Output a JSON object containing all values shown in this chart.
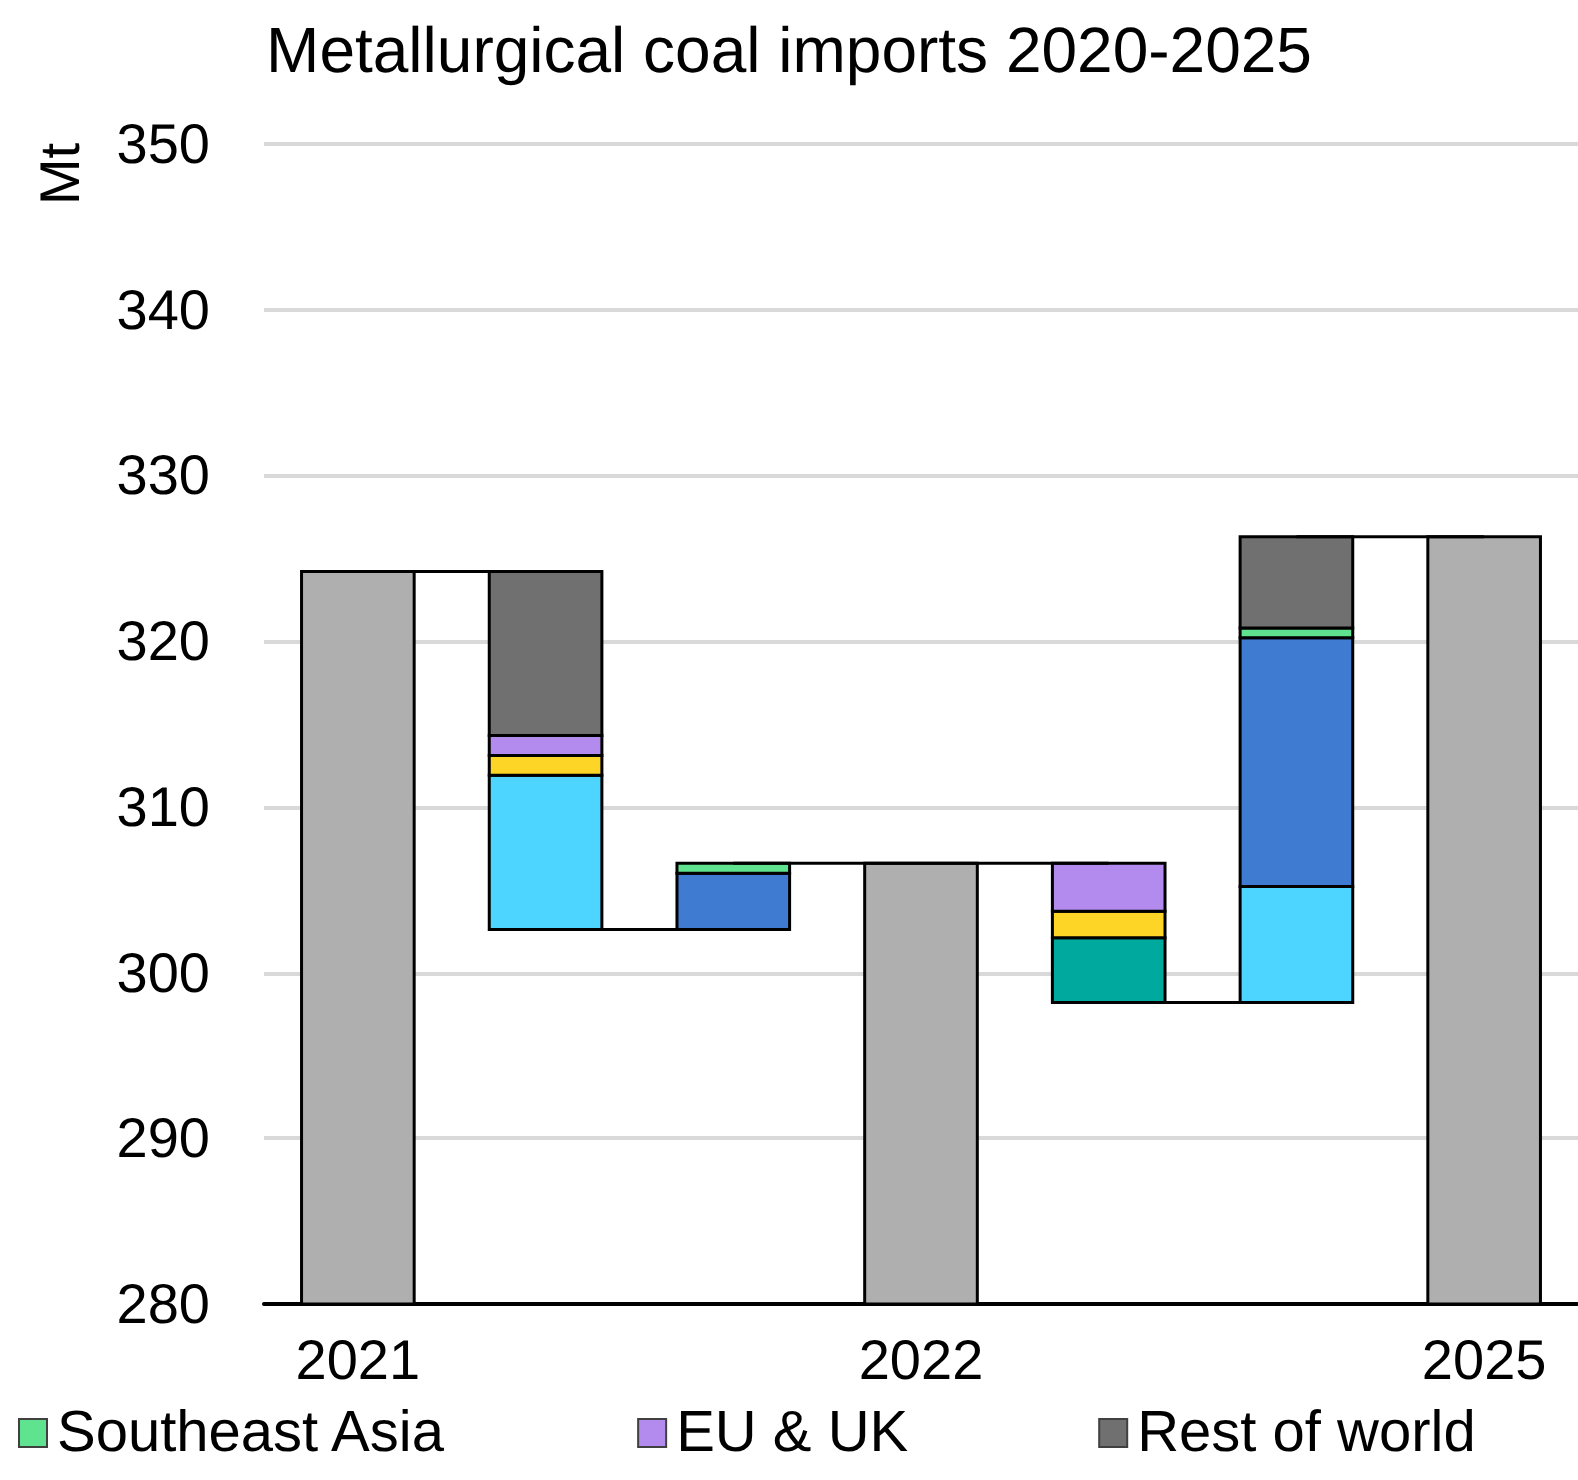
{
  "chart_data": {
    "type": "bar",
    "title": "Metallurgical coal imports 2020-2025",
    "ylabel": "Mt",
    "categories": [
      "2021",
      null,
      null,
      "2022",
      null,
      null,
      "2025"
    ],
    "series": [
      {
        "color": "#afafaf",
        "values": [
          324.2,
          null,
          null,
          306.6,
          null,
          null,
          326.3
        ]
      },
      {
        "color": "#4dd5ff",
        "values": [
          null,
          9.3,
          null,
          null,
          null,
          7.0,
          null
        ],
        "base": [
          null,
          302.6,
          null,
          null,
          null,
          298.2,
          null
        ]
      },
      {
        "color": "#00a99d",
        "values": [
          null,
          null,
          null,
          null,
          3.9,
          null,
          null
        ],
        "base": [
          null,
          null,
          null,
          null,
          298.2,
          null,
          null
        ]
      },
      {
        "color": "#3e7bd1",
        "values": [
          null,
          null,
          3.4,
          null,
          null,
          15.0,
          null
        ],
        "base": [
          null,
          null,
          302.6,
          null,
          null,
          305.2,
          null
        ]
      },
      {
        "color": "#fdd526",
        "values": [
          null,
          1.2,
          null,
          null,
          1.6,
          null,
          null
        ],
        "base": [
          null,
          311.9,
          null,
          null,
          302.1,
          null,
          null
        ]
      },
      {
        "name": "Southeast Asia",
        "color": "#5fe38f",
        "values": [
          null,
          null,
          0.6,
          null,
          null,
          0.6,
          null
        ],
        "base": [
          null,
          null,
          306.0,
          null,
          null,
          320.2,
          null
        ]
      },
      {
        "name": "EU & UK",
        "color": "#b38bef",
        "values": [
          null,
          1.2,
          null,
          null,
          2.9,
          null,
          null
        ],
        "base": [
          null,
          313.1,
          null,
          null,
          303.7,
          null,
          null
        ]
      },
      {
        "name": "Rest of world",
        "color": "#6f706f",
        "values": [
          null,
          9.9,
          null,
          null,
          null,
          5.5,
          null
        ],
        "base": [
          null,
          314.3,
          null,
          null,
          null,
          320.8,
          null
        ]
      }
    ],
    "ylim": [
      280,
      350
    ],
    "yticks": [
      280,
      290,
      300,
      310,
      320,
      330,
      340,
      350
    ],
    "grid": "y",
    "legend": "bottom"
  }
}
